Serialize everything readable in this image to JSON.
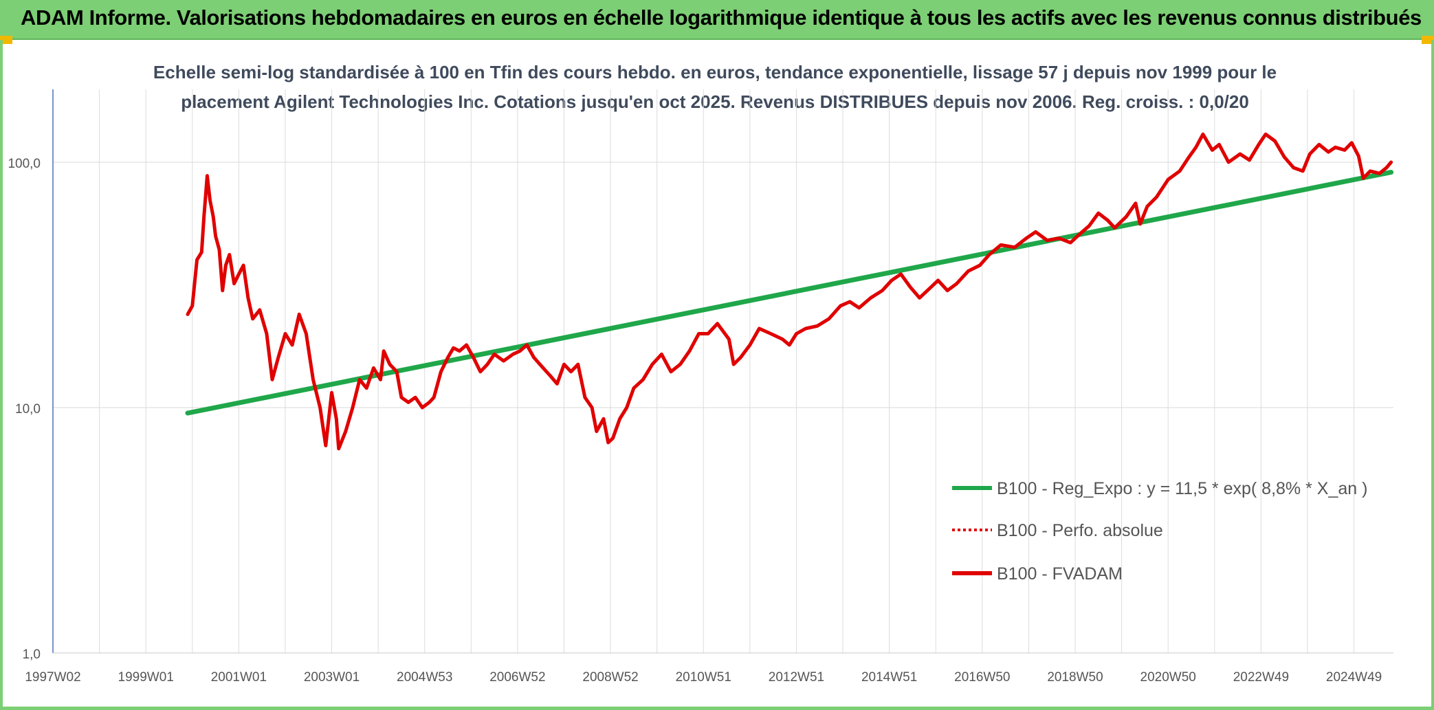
{
  "header": {
    "title": "ADAM Informe. Valorisations hebdomadaires en euros en échelle logarithmique identique à tous les actifs avec les revenus connus distribués"
  },
  "chart_data": {
    "type": "line",
    "title_lines": [
      "Echelle semi-log standardisée à 100 en Tfin des cours hebdo. en euros, tendance exponentielle, lissage 57 j depuis nov 1999 pour le",
      "placement Agilent Technologies Inc. Cotations jusqu'en oct 2025. Revenus DISTRIBUES depuis nov 2006. Reg. croiss. : 0,0/20"
    ],
    "y_scale": "log",
    "ylim": [
      1,
      180
    ],
    "y_ticks": [
      {
        "value": 1,
        "label": "1,0"
      },
      {
        "value": 10,
        "label": "10,0"
      },
      {
        "value": 100,
        "label": "100,0"
      }
    ],
    "xlim": [
      1997.0,
      2025.85
    ],
    "x_ticks": [
      {
        "x": 1997.0,
        "label": "1997W02"
      },
      {
        "x": 1999.0,
        "label": "1999W01"
      },
      {
        "x": 2001.0,
        "label": "2001W01"
      },
      {
        "x": 2003.0,
        "label": "2003W01"
      },
      {
        "x": 2005.0,
        "label": "2004W53"
      },
      {
        "x": 2007.0,
        "label": "2006W52"
      },
      {
        "x": 2009.0,
        "label": "2008W52"
      },
      {
        "x": 2011.0,
        "label": "2010W51"
      },
      {
        "x": 2013.0,
        "label": "2012W51"
      },
      {
        "x": 2015.0,
        "label": "2014W51"
      },
      {
        "x": 2017.0,
        "label": "2016W50"
      },
      {
        "x": 2019.0,
        "label": "2018W50"
      },
      {
        "x": 2021.0,
        "label": "2020W50"
      },
      {
        "x": 2023.0,
        "label": "2022W49"
      },
      {
        "x": 2025.0,
        "label": "2024W49"
      }
    ],
    "grid": "vertical and horizontal",
    "legend_position": "bottom-right",
    "series": [
      {
        "name": "B100 - Reg_Expo : y = 11,5 * exp( 8,8% *  X_an )",
        "color": "#1fa74a",
        "style": "solid",
        "points": [
          [
            1999.9,
            9.5
          ],
          [
            2025.8,
            91.0
          ]
        ]
      },
      {
        "name": "B100 - Perfo. absolue",
        "color": "#e00000",
        "style": "dotted",
        "points": []
      },
      {
        "name": "B100 - FVADAM",
        "color": "#e00000",
        "style": "solid",
        "points": [
          [
            1999.9,
            24.0
          ],
          [
            2000.0,
            26.0
          ],
          [
            2000.1,
            40.0
          ],
          [
            2000.2,
            43.0
          ],
          [
            2000.25,
            60.0
          ],
          [
            2000.32,
            88.0
          ],
          [
            2000.38,
            70.0
          ],
          [
            2000.45,
            60.0
          ],
          [
            2000.5,
            50.0
          ],
          [
            2000.58,
            44.0
          ],
          [
            2000.65,
            30.0
          ],
          [
            2000.72,
            38.0
          ],
          [
            2000.8,
            42.0
          ],
          [
            2000.9,
            32.0
          ],
          [
            2001.0,
            35.0
          ],
          [
            2001.1,
            38.0
          ],
          [
            2001.2,
            28.0
          ],
          [
            2001.3,
            23.0
          ],
          [
            2001.45,
            25.0
          ],
          [
            2001.6,
            20.0
          ],
          [
            2001.72,
            13.0
          ],
          [
            2001.85,
            16.0
          ],
          [
            2002.0,
            20.0
          ],
          [
            2002.15,
            18.0
          ],
          [
            2002.3,
            24.0
          ],
          [
            2002.45,
            20.0
          ],
          [
            2002.6,
            13.0
          ],
          [
            2002.75,
            10.0
          ],
          [
            2002.87,
            7.0
          ],
          [
            2003.0,
            11.5
          ],
          [
            2003.1,
            9.0
          ],
          [
            2003.15,
            6.8
          ],
          [
            2003.3,
            8.0
          ],
          [
            2003.45,
            10.0
          ],
          [
            2003.6,
            13.0
          ],
          [
            2003.75,
            12.0
          ],
          [
            2003.9,
            14.5
          ],
          [
            2004.05,
            13.0
          ],
          [
            2004.12,
            17.0
          ],
          [
            2004.25,
            15.0
          ],
          [
            2004.4,
            14.0
          ],
          [
            2004.5,
            11.0
          ],
          [
            2004.65,
            10.5
          ],
          [
            2004.8,
            11.0
          ],
          [
            2004.95,
            10.0
          ],
          [
            2005.1,
            10.5
          ],
          [
            2005.2,
            11.0
          ],
          [
            2005.35,
            14.0
          ],
          [
            2005.5,
            16.0
          ],
          [
            2005.62,
            17.5
          ],
          [
            2005.75,
            17.0
          ],
          [
            2005.9,
            18.0
          ],
          [
            2006.05,
            16.0
          ],
          [
            2006.2,
            14.0
          ],
          [
            2006.35,
            15.0
          ],
          [
            2006.5,
            16.5
          ],
          [
            2006.7,
            15.5
          ],
          [
            2006.9,
            16.5
          ],
          [
            2007.05,
            17.0
          ],
          [
            2007.2,
            18.0
          ],
          [
            2007.35,
            16.0
          ],
          [
            2007.55,
            14.5
          ],
          [
            2007.7,
            13.5
          ],
          [
            2007.85,
            12.5
          ],
          [
            2008.0,
            15.0
          ],
          [
            2008.15,
            14.0
          ],
          [
            2008.3,
            15.0
          ],
          [
            2008.45,
            11.0
          ],
          [
            2008.6,
            10.0
          ],
          [
            2008.7,
            8.0
          ],
          [
            2008.85,
            9.0
          ],
          [
            2008.95,
            7.2
          ],
          [
            2009.05,
            7.5
          ],
          [
            2009.2,
            9.0
          ],
          [
            2009.35,
            10.0
          ],
          [
            2009.5,
            12.0
          ],
          [
            2009.7,
            13.0
          ],
          [
            2009.9,
            15.0
          ],
          [
            2010.1,
            16.5
          ],
          [
            2010.3,
            14.0
          ],
          [
            2010.5,
            15.0
          ],
          [
            2010.7,
            17.0
          ],
          [
            2010.9,
            20.0
          ],
          [
            2011.1,
            20.0
          ],
          [
            2011.3,
            22.0
          ],
          [
            2011.55,
            19.0
          ],
          [
            2011.65,
            15.0
          ],
          [
            2011.8,
            16.0
          ],
          [
            2012.0,
            18.0
          ],
          [
            2012.2,
            21.0
          ],
          [
            2012.45,
            20.0
          ],
          [
            2012.7,
            19.0
          ],
          [
            2012.85,
            18.0
          ],
          [
            2013.0,
            20.0
          ],
          [
            2013.2,
            21.0
          ],
          [
            2013.45,
            21.5
          ],
          [
            2013.7,
            23.0
          ],
          [
            2013.95,
            26.0
          ],
          [
            2014.15,
            27.0
          ],
          [
            2014.35,
            25.5
          ],
          [
            2014.6,
            28.0
          ],
          [
            2014.85,
            30.0
          ],
          [
            2015.05,
            33.0
          ],
          [
            2015.25,
            35.0
          ],
          [
            2015.45,
            31.0
          ],
          [
            2015.65,
            28.0
          ],
          [
            2015.9,
            31.0
          ],
          [
            2016.05,
            33.0
          ],
          [
            2016.25,
            30.0
          ],
          [
            2016.45,
            32.0
          ],
          [
            2016.7,
            36.0
          ],
          [
            2016.95,
            38.0
          ],
          [
            2017.15,
            42.0
          ],
          [
            2017.4,
            46.0
          ],
          [
            2017.7,
            45.0
          ],
          [
            2017.95,
            49.0
          ],
          [
            2018.15,
            52.0
          ],
          [
            2018.4,
            48.0
          ],
          [
            2018.65,
            49.0
          ],
          [
            2018.9,
            47.0
          ],
          [
            2019.1,
            51.0
          ],
          [
            2019.3,
            55.0
          ],
          [
            2019.5,
            62.0
          ],
          [
            2019.7,
            58.0
          ],
          [
            2019.85,
            54.0
          ],
          [
            2020.1,
            60.0
          ],
          [
            2020.3,
            68.0
          ],
          [
            2020.4,
            56.0
          ],
          [
            2020.55,
            66.0
          ],
          [
            2020.75,
            72.0
          ],
          [
            2021.0,
            85.0
          ],
          [
            2021.25,
            92.0
          ],
          [
            2021.45,
            105.0
          ],
          [
            2021.6,
            115.0
          ],
          [
            2021.75,
            130.0
          ],
          [
            2021.95,
            112.0
          ],
          [
            2022.1,
            118.0
          ],
          [
            2022.3,
            100.0
          ],
          [
            2022.55,
            108.0
          ],
          [
            2022.75,
            102.0
          ],
          [
            2022.95,
            118.0
          ],
          [
            2023.1,
            130.0
          ],
          [
            2023.3,
            122.0
          ],
          [
            2023.5,
            105.0
          ],
          [
            2023.7,
            95.0
          ],
          [
            2023.9,
            92.0
          ],
          [
            2024.05,
            108.0
          ],
          [
            2024.25,
            118.0
          ],
          [
            2024.45,
            110.0
          ],
          [
            2024.6,
            115.0
          ],
          [
            2024.8,
            112.0
          ],
          [
            2024.95,
            120.0
          ],
          [
            2025.1,
            106.0
          ],
          [
            2025.2,
            86.0
          ],
          [
            2025.35,
            92.0
          ],
          [
            2025.55,
            90.0
          ],
          [
            2025.7,
            95.0
          ],
          [
            2025.8,
            100.0
          ]
        ]
      }
    ]
  }
}
